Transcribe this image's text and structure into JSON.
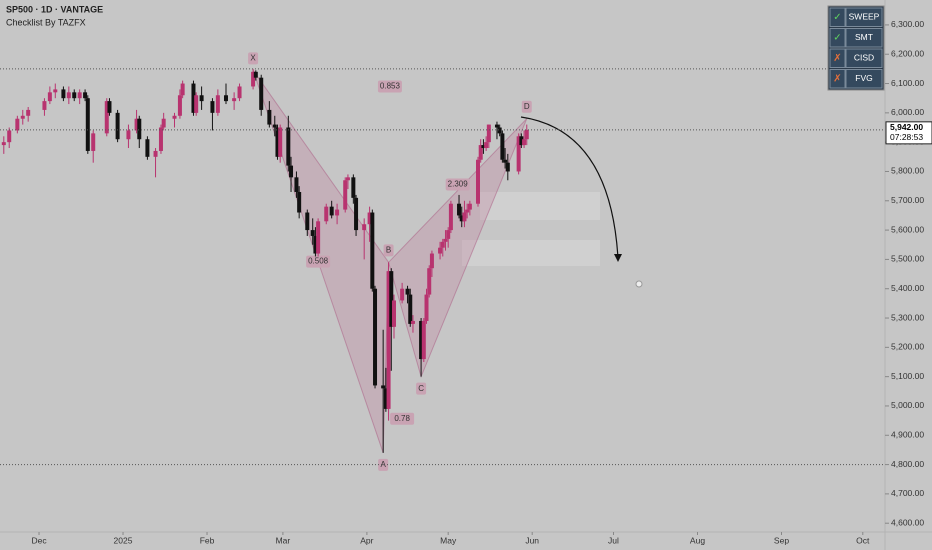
{
  "chart_data": {
    "type": "candlestick",
    "title": "SP500 · 1D · VANTAGE",
    "subtitle": "Checklist By TAZFX",
    "up_color": "#b8336f",
    "down_color": "#111111",
    "x": [
      -13,
      -11,
      -8,
      -6,
      -4,
      2,
      4,
      6,
      9,
      11,
      13,
      15,
      17,
      18,
      20,
      25,
      26,
      29,
      33,
      36,
      37,
      40,
      43,
      45,
      46,
      50,
      52,
      53,
      57,
      58,
      60,
      64,
      66,
      69,
      72,
      74,
      79,
      80,
      82,
      85,
      87,
      88,
      89,
      92,
      93,
      95,
      96,
      99,
      101,
      102,
      103,
      106,
      108,
      110,
      113,
      114,
      116,
      117,
      120,
      122,
      123,
      124,
      127,
      128,
      129,
      130,
      131,
      134,
      136,
      137,
      138,
      141,
      142,
      143,
      144,
      145,
      148,
      149,
      150,
      151,
      152,
      155,
      156,
      157,
      158,
      159,
      162,
      163,
      164,
      165,
      166,
      169,
      170,
      171,
      172,
      173,
      177,
      178,
      179,
      180
    ],
    "open": [
      5890,
      5900,
      5940,
      5980,
      5990,
      6010,
      6040,
      6070,
      6080,
      6050,
      6070,
      6050,
      6070,
      6050,
      5870,
      5930,
      6040,
      6000,
      5910,
      5940,
      5980,
      5910,
      5850,
      5870,
      5950,
      5980,
      5990,
      6060,
      6100,
      6000,
      6060,
      6040,
      6000,
      6060,
      6040,
      6050,
      6090,
      6140,
      6120,
      6010,
      5960,
      5950,
      5850,
      5950,
      5820,
      5780,
      5730,
      5660,
      5600,
      5580,
      5520,
      5630,
      5680,
      5650,
      5670,
      5770,
      5780,
      5710,
      5600,
      5620,
      5660,
      5400,
      5070,
      5060,
      4990,
      5460,
      5270,
      5360,
      5400,
      5380,
      5280,
      5290,
      5160,
      5290,
      5380,
      5470,
      5520,
      5540,
      5560,
      5570,
      5600,
      5690,
      5650,
      5630,
      5660,
      5670,
      5690,
      5840,
      5890,
      5880,
      5900,
      5960,
      5950,
      5930,
      5840,
      5830,
      5800,
      5920,
      5890,
      5910
    ],
    "high": [
      5920,
      5950,
      5990,
      6010,
      6020,
      6050,
      6090,
      6100,
      6090,
      6090,
      6080,
      6080,
      6080,
      6060,
      5940,
      6050,
      6050,
      6010,
      5960,
      6010,
      5990,
      5920,
      5880,
      5960,
      6000,
      6000,
      6080,
      6110,
      6110,
      6070,
      6090,
      6050,
      6080,
      6100,
      6070,
      6100,
      6150,
      6145,
      6130,
      6040,
      5990,
      5960,
      5960,
      5990,
      5850,
      5800,
      5750,
      5670,
      5640,
      5610,
      5640,
      5690,
      5700,
      5690,
      5780,
      5790,
      5790,
      5720,
      5640,
      5680,
      5670,
      5410,
      5260,
      5130,
      5490,
      5470,
      5380,
      5420,
      5410,
      5400,
      5310,
      5300,
      5300,
      5400,
      5480,
      5530,
      5560,
      5570,
      5600,
      5610,
      5700,
      5720,
      5680,
      5700,
      5690,
      5700,
      5850,
      5910,
      5910,
      5920,
      5960,
      5970,
      5960,
      5940,
      5880,
      5860,
      5930,
      5930,
      5940,
      5960
    ],
    "low": [
      5860,
      5880,
      5930,
      5960,
      5970,
      5990,
      6030,
      6050,
      6040,
      6030,
      6040,
      6030,
      6040,
      5860,
      5830,
      5920,
      5990,
      5900,
      5880,
      5930,
      5880,
      5840,
      5780,
      5860,
      5940,
      5950,
      5980,
      6050,
      5990,
      5990,
      6010,
      5940,
      5990,
      6030,
      6010,
      6040,
      6080,
      6110,
      5990,
      5950,
      5920,
      5840,
      5830,
      5800,
      5730,
      5710,
      5640,
      5580,
      5550,
      5510,
      5510,
      5620,
      5640,
      5620,
      5660,
      5740,
      5690,
      5580,
      5500,
      5560,
      5390,
      5060,
      4840,
      4980,
      4950,
      5120,
      5230,
      5350,
      5350,
      5270,
      5250,
      5100,
      5150,
      5280,
      5370,
      5440,
      5500,
      5510,
      5530,
      5540,
      5590,
      5640,
      5610,
      5610,
      5640,
      5650,
      5680,
      5830,
      5860,
      5870,
      5880,
      5910,
      5920,
      5830,
      5810,
      5770,
      5790,
      5880,
      5880,
      5890
    ],
    "close": [
      5900,
      5940,
      5980,
      5990,
      6010,
      6040,
      6070,
      6080,
      6050,
      6070,
      6050,
      6070,
      6050,
      5870,
      5930,
      6040,
      6000,
      5910,
      5940,
      5980,
      5910,
      5850,
      5870,
      5950,
      5980,
      5990,
      6060,
      6100,
      6000,
      6060,
      6040,
      6000,
      6060,
      6040,
      6050,
      6090,
      6140,
      6120,
      6010,
      5960,
      5950,
      5850,
      5950,
      5820,
      5780,
      5730,
      5660,
      5600,
      5580,
      5520,
      5630,
      5680,
      5650,
      5670,
      5770,
      5780,
      5710,
      5600,
      5620,
      5660,
      5400,
      5070,
      5060,
      4990,
      5460,
      5270,
      5360,
      5400,
      5380,
      5280,
      5290,
      5160,
      5290,
      5380,
      5470,
      5520,
      5540,
      5560,
      5570,
      5600,
      5690,
      5650,
      5630,
      5660,
      5670,
      5690,
      5840,
      5890,
      5880,
      5900,
      5960,
      5950,
      5930,
      5840,
      5830,
      5800,
      5920,
      5890,
      5910,
      5942
    ],
    "xlim": [
      -14.4,
      312.2
    ],
    "xticks": [
      {
        "value": 0,
        "label": "Dec"
      },
      {
        "value": 31,
        "label": "2025"
      },
      {
        "value": 62,
        "label": "Feb"
      },
      {
        "value": 90,
        "label": "Mar"
      },
      {
        "value": 121,
        "label": "Apr"
      },
      {
        "value": 151,
        "label": "May"
      },
      {
        "value": 182,
        "label": "Jun"
      },
      {
        "value": 212,
        "label": "Jul"
      },
      {
        "value": 243,
        "label": "Aug"
      },
      {
        "value": 274,
        "label": "Sep"
      },
      {
        "value": 304,
        "label": "Oct"
      }
    ],
    "ylim": [
      4570,
      6385
    ],
    "yticks": [
      {
        "value": 4600,
        "label": "4,600.00"
      },
      {
        "value": 4700,
        "label": "4,700.00"
      },
      {
        "value": 4800,
        "label": "4,800.00"
      },
      {
        "value": 4900,
        "label": "4,900.00"
      },
      {
        "value": 5000,
        "label": "5,000.00"
      },
      {
        "value": 5100,
        "label": "5,100.00"
      },
      {
        "value": 5200,
        "label": "5,200.00"
      },
      {
        "value": 5300,
        "label": "5,300.00"
      },
      {
        "value": 5400,
        "label": "5,400.00"
      },
      {
        "value": 5500,
        "label": "5,500.00"
      },
      {
        "value": 5600,
        "label": "5,600.00"
      },
      {
        "value": 5700,
        "label": "5,700.00"
      },
      {
        "value": 5800,
        "label": "5,800.00"
      },
      {
        "value": 5900,
        "label": "5,900.00"
      },
      {
        "value": 6000,
        "label": "6,000.00"
      },
      {
        "value": 6100,
        "label": "6,100.00"
      },
      {
        "value": 6200,
        "label": "6,200.00"
      },
      {
        "value": 6300,
        "label": "6,300.00"
      }
    ],
    "levels": [
      6150,
      4800
    ],
    "last_price": {
      "value": 5942,
      "label": "5,942.00"
    },
    "countdown": "07:28:53",
    "pattern": [
      {
        "label": "X",
        "x": 79,
        "y": 6145
      },
      {
        "label": "A",
        "x": 127,
        "y": 4840
      },
      {
        "label": "B",
        "x": 129,
        "y": 5490
      },
      {
        "label": "C",
        "x": 141,
        "y": 5100
      },
      {
        "label": "D",
        "x": 180,
        "y": 5980
      }
    ],
    "ratios": [
      "0.853",
      "0.508",
      "2.309",
      "0.78"
    ],
    "checklist": [
      {
        "status": "✓",
        "label": "SWEEP"
      },
      {
        "status": "✓",
        "label": "SMT"
      },
      {
        "status": "✗",
        "label": "CISD"
      },
      {
        "status": "✗",
        "label": "FVG"
      }
    ]
  }
}
